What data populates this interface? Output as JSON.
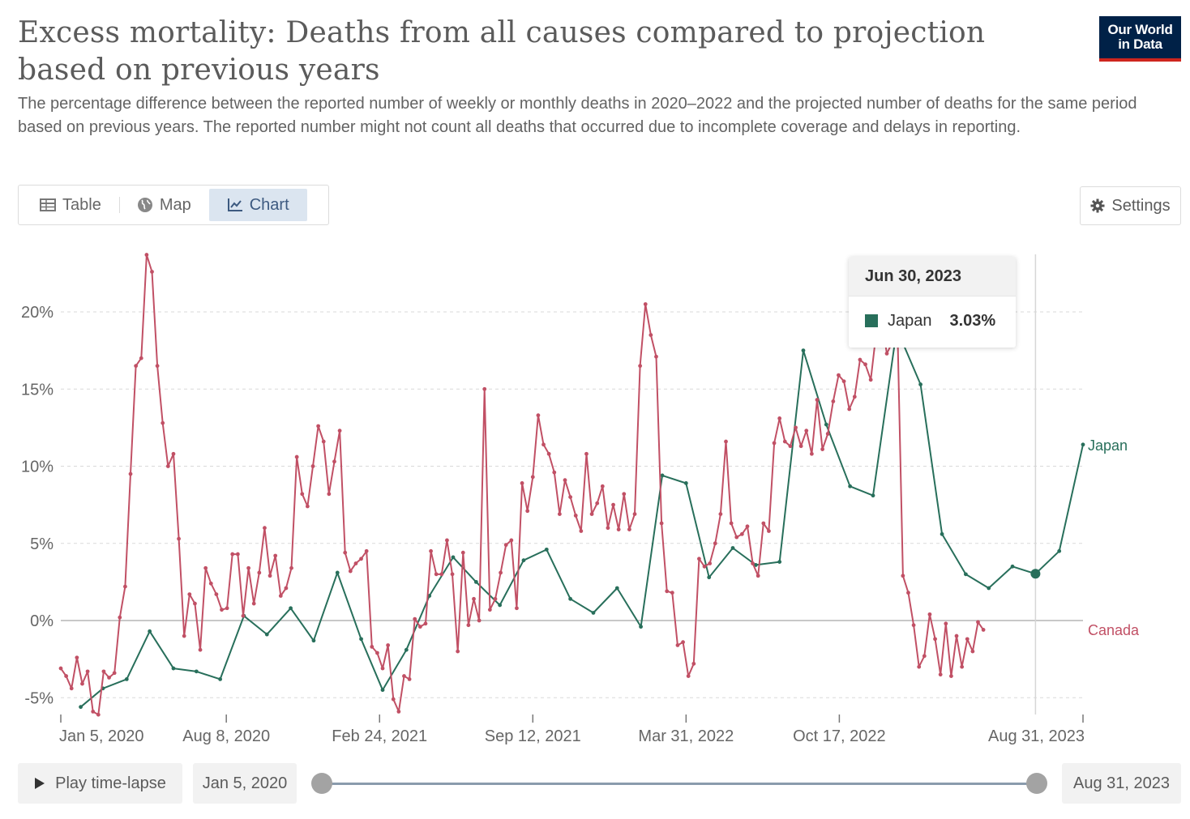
{
  "header": {
    "title": "Excess mortality: Deaths from all causes compared to projection based on previous years",
    "subtitle": "The percentage difference between the reported number of weekly or monthly deaths in 2020–2022 and the projected number of deaths for the same period based on previous years. The reported number might not count all deaths that occurred due to incomplete coverage and delays in reporting.",
    "logo_line1": "Our World",
    "logo_line2": "in Data"
  },
  "tabs": [
    {
      "label": "Table",
      "icon": "table-icon"
    },
    {
      "label": "Map",
      "icon": "globe-icon"
    },
    {
      "label": "Chart",
      "icon": "line-chart-icon",
      "active": true
    }
  ],
  "settings_label": "Settings",
  "tooltip": {
    "date": "Jun 30, 2023",
    "series": "Japan",
    "value": "3.03%",
    "color": "#286f5b"
  },
  "timeline": {
    "play_label": "Play time-lapse",
    "start_date": "Jan 5, 2020",
    "end_date": "Aug 31, 2023"
  },
  "chart_data": {
    "type": "line",
    "x_ticks": [
      "Jan 5, 2020",
      "Aug 8, 2020",
      "Feb 24, 2021",
      "Sep 12, 2021",
      "Mar 31, 2022",
      "Oct 17, 2022",
      "Aug 31, 2023"
    ],
    "y_ticks": [
      "-5%",
      "0%",
      "5%",
      "10%",
      "15%",
      "20%"
    ],
    "ylim": [
      -5.5,
      24
    ],
    "grid": true,
    "series": [
      {
        "name": "Japan",
        "color": "#286f5b",
        "x": [
          "2020-01-31",
          "2020-02-29",
          "2020-03-31",
          "2020-04-30",
          "2020-05-31",
          "2020-06-30",
          "2020-07-31",
          "2020-08-31",
          "2020-09-30",
          "2020-10-31",
          "2020-11-30",
          "2020-12-31",
          "2021-01-31",
          "2021-02-28",
          "2021-03-31",
          "2021-04-30",
          "2021-05-31",
          "2021-06-30",
          "2021-07-31",
          "2021-08-31",
          "2021-09-30",
          "2021-10-31",
          "2021-11-30",
          "2021-12-31",
          "2022-01-31",
          "2022-02-28",
          "2022-03-31",
          "2022-04-30",
          "2022-05-31",
          "2022-06-30",
          "2022-07-31",
          "2022-08-31",
          "2022-09-30",
          "2022-10-31",
          "2022-11-30",
          "2022-12-31",
          "2023-01-31",
          "2023-02-28",
          "2023-03-31",
          "2023-04-30",
          "2023-05-31",
          "2023-06-30",
          "2023-07-31",
          "2023-08-31"
        ],
        "values": [
          -5.6,
          -4.4,
          -3.8,
          -0.7,
          -3.1,
          -3.3,
          -3.8,
          0.3,
          -0.9,
          0.8,
          -1.3,
          3.1,
          -1.2,
          -4.5,
          -1.9,
          1.6,
          4.1,
          2.5,
          1.0,
          3.9,
          4.6,
          1.4,
          0.5,
          2.1,
          -0.4,
          9.4,
          8.9,
          2.8,
          4.7,
          3.6,
          3.8,
          17.5,
          12.7,
          8.7,
          8.1,
          18.9,
          15.3,
          5.6,
          3.0,
          2.1,
          3.5,
          3.03,
          4.5,
          11.4
        ]
      },
      {
        "name": "Canada",
        "color": "#c15065",
        "x_start": "2020-01-05",
        "step_days": 7,
        "values": [
          -3.1,
          -3.6,
          -4.4,
          -2.4,
          -4.1,
          -3.3,
          -5.9,
          -6.1,
          -3.3,
          -3.7,
          -3.4,
          0.2,
          2.2,
          9.5,
          16.5,
          17.0,
          23.7,
          22.6,
          16.5,
          12.8,
          10.0,
          10.8,
          5.3,
          -1.0,
          1.7,
          1.1,
          -1.9,
          3.4,
          2.4,
          1.7,
          0.7,
          0.8,
          4.3,
          4.3,
          0.3,
          3.4,
          1.1,
          3.1,
          6.0,
          2.9,
          4.2,
          1.6,
          2.1,
          3.4,
          10.6,
          8.2,
          7.4,
          10.0,
          12.6,
          11.6,
          8.2,
          10.3,
          12.3,
          4.4,
          3.2,
          3.7,
          4.0,
          4.5,
          -1.7,
          -2.1,
          -3.1,
          -1.6,
          -5.1,
          -5.9,
          -3.6,
          -3.8,
          0.1,
          -0.4,
          -0.2,
          4.5,
          3.0,
          3.0,
          5.2,
          3.0,
          -2.0,
          4.4,
          -0.3,
          1.4,
          0.0,
          15.0,
          0.7,
          1.4,
          3.1,
          4.9,
          5.2,
          0.8,
          8.9,
          7.1,
          9.3,
          13.3,
          11.4,
          10.8,
          9.6,
          6.9,
          9.1,
          8.0,
          6.8,
          5.8,
          10.8,
          6.9,
          7.6,
          8.7,
          6.0,
          7.5,
          5.9,
          8.2,
          5.9,
          6.9,
          16.5,
          20.5,
          18.5,
          17.1,
          6.3,
          1.9,
          1.8,
          -1.6,
          -1.4,
          -3.6,
          -2.8,
          4.0,
          3.5,
          3.7,
          5.0,
          6.9,
          11.6,
          6.3,
          5.4,
          5.6,
          6.1,
          3.7,
          2.9,
          6.3,
          5.8,
          11.5,
          13.1,
          11.6,
          11.3,
          12.5,
          11.3,
          12.3,
          10.8,
          14.3,
          11.1,
          12.1,
          14.2,
          15.9,
          15.5,
          13.7,
          14.5,
          16.9,
          16.6,
          15.6,
          18.6,
          19.5,
          17.3,
          18.0,
          18.8,
          2.9,
          1.8,
          -0.3,
          -3.0,
          -2.3,
          0.4,
          -1.2,
          -3.5,
          -0.2,
          -3.6,
          -1.0,
          -3.0,
          -1.2,
          -2.0,
          -0.1,
          -0.6
        ]
      }
    ]
  }
}
